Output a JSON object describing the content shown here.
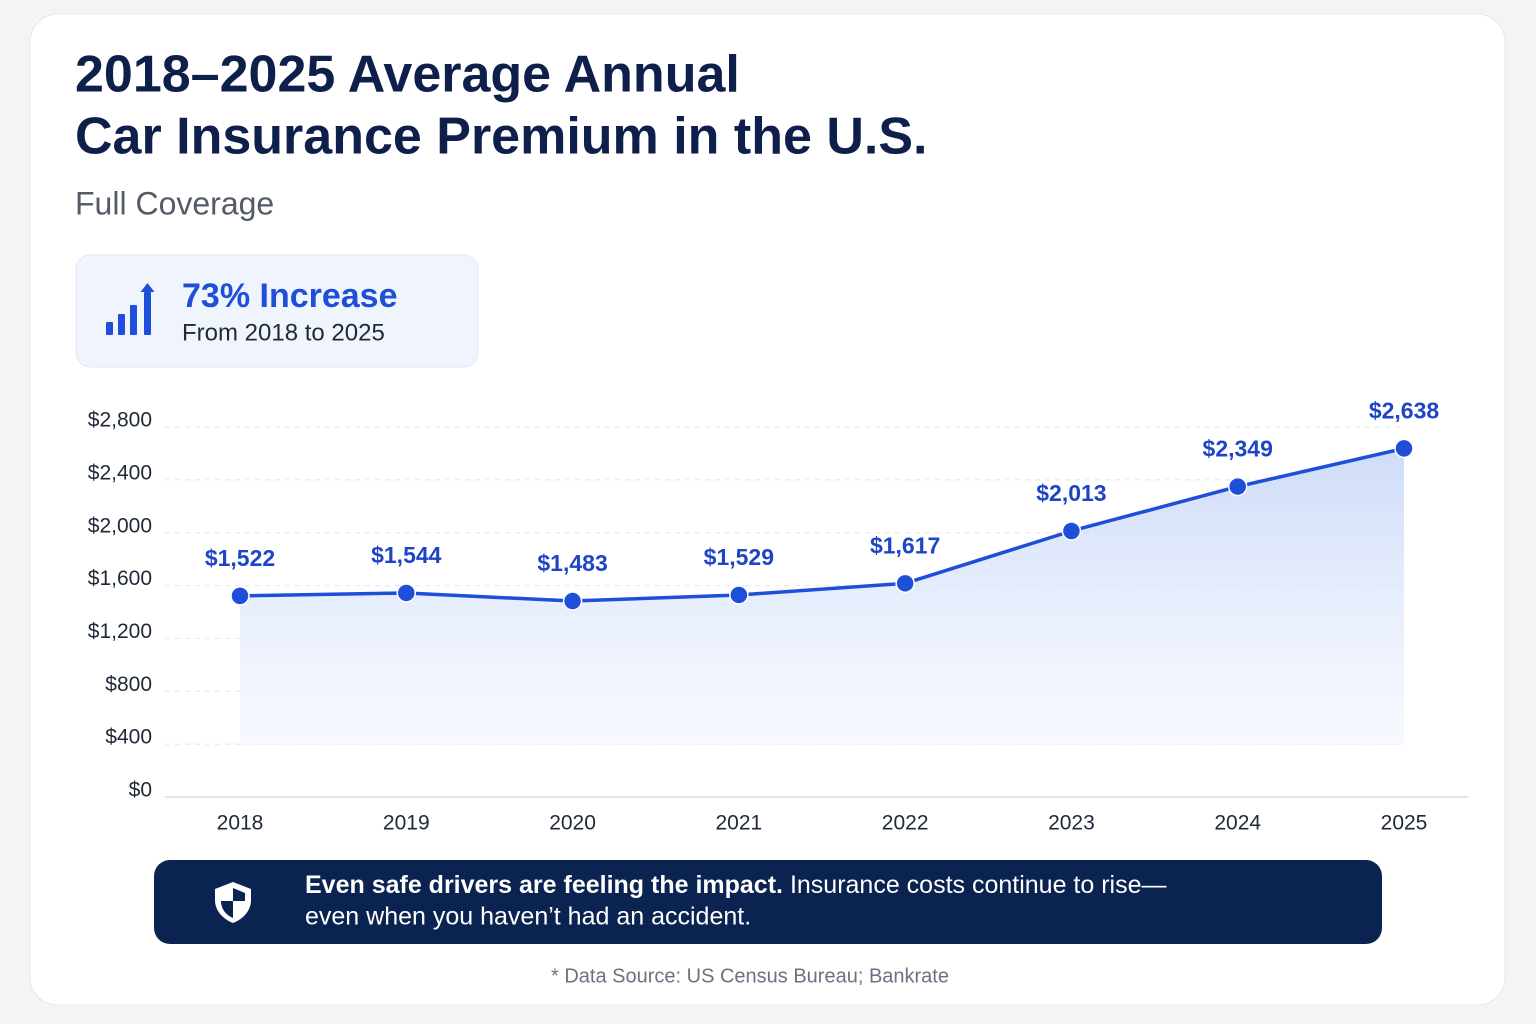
{
  "chart_data": {
    "type": "line",
    "title": [
      "2018–2025 Average Annual",
      "Car Insurance Premium in the U.S."
    ],
    "subtitle": "Full Coverage",
    "callout": {
      "headline": "73% Increase",
      "detail": "From 2018 to 2025"
    },
    "categories": [
      "2018",
      "2019",
      "2020",
      "2021",
      "2022",
      "2023",
      "2024",
      "2025"
    ],
    "values": [
      1522,
      1544,
      1483,
      1529,
      1617,
      2013,
      2349,
      2638
    ],
    "value_labels": [
      "$1,522",
      "$1,544",
      "$1,483",
      "$1,529",
      "$1,617",
      "$2,013",
      "$2,349",
      "$2,638"
    ],
    "color": "#1f4fd8",
    "ylim": [
      0,
      2800
    ],
    "yticks": [
      {
        "value": 0,
        "label": "$0"
      },
      {
        "value": 400,
        "label": "$400"
      },
      {
        "value": 800,
        "label": "$800"
      },
      {
        "value": 1200,
        "label": "$1,200"
      },
      {
        "value": 1600,
        "label": "$1,600"
      },
      {
        "value": 2000,
        "label": "$2,000"
      },
      {
        "value": 2400,
        "label": "$2,400"
      },
      {
        "value": 2800,
        "label": "$2,800"
      }
    ],
    "grid": true,
    "banner": {
      "bold": "Even safe drivers are feeling the impact.",
      "text": "Insurance costs continue to rise—",
      "text2": "even when you haven’t had an accident."
    },
    "source": "* Data Source: US Census Bureau; Bankrate"
  }
}
